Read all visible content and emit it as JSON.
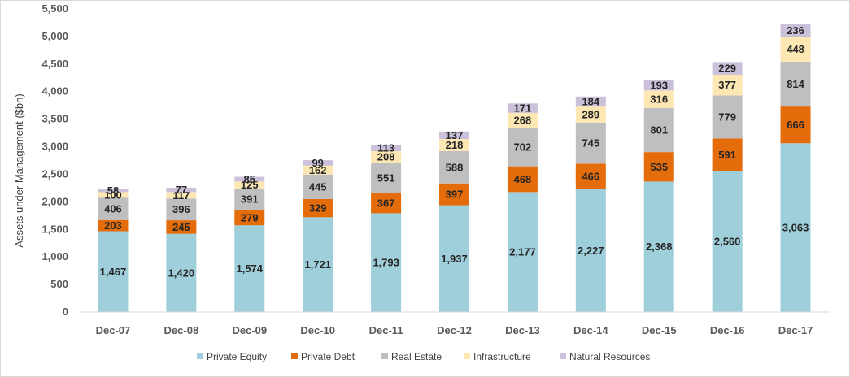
{
  "chart_data": {
    "type": "bar",
    "stacked": true,
    "ylabel": "Assets under Management ($bn)",
    "xlabel": "",
    "ylim": [
      0,
      5500
    ],
    "yticks": [
      0,
      500,
      1000,
      1500,
      2000,
      2500,
      3000,
      3500,
      4000,
      4500,
      5000,
      5500
    ],
    "ytick_labels": [
      "0",
      "500",
      "1,000",
      "1,500",
      "2,000",
      "2,500",
      "3,000",
      "3,500",
      "4,000",
      "4,500",
      "5,000",
      "5,500"
    ],
    "grid": false,
    "legend_position": "bottom",
    "categories": [
      "Dec-07",
      "Dec-08",
      "Dec-09",
      "Dec-10",
      "Dec-11",
      "Dec-12",
      "Dec-13",
      "Dec-14",
      "Dec-15",
      "Dec-16",
      "Dec-17"
    ],
    "series": [
      {
        "name": "Private Equity",
        "color": "#9ecfdb",
        "values": [
          1467,
          1420,
          1574,
          1721,
          1793,
          1937,
          2177,
          2227,
          2368,
          2560,
          3063
        ],
        "labels": [
          "1,467",
          "1,420",
          "1,574",
          "1,721",
          "1,793",
          "1,937",
          "2,177",
          "2,227",
          "2,368",
          "2,560",
          "3,063"
        ]
      },
      {
        "name": "Private Debt",
        "color": "#e46c0a",
        "values": [
          203,
          245,
          279,
          329,
          367,
          397,
          468,
          466,
          535,
          591,
          666
        ],
        "labels": [
          "203",
          "245",
          "279",
          "329",
          "367",
          "397",
          "468",
          "466",
          "535",
          "591",
          "666"
        ]
      },
      {
        "name": "Real Estate",
        "color": "#bfbfbf",
        "values": [
          406,
          396,
          391,
          445,
          551,
          588,
          702,
          745,
          801,
          779,
          814
        ],
        "labels": [
          "406",
          "396",
          "391",
          "445",
          "551",
          "588",
          "702",
          "745",
          "801",
          "779",
          "814"
        ]
      },
      {
        "name": "Infrastructure",
        "color": "#fde8b4",
        "values": [
          100,
          117,
          125,
          162,
          208,
          218,
          268,
          289,
          316,
          377,
          448
        ],
        "labels": [
          "100",
          "117",
          "125",
          "162",
          "208",
          "218",
          "268",
          "289",
          "316",
          "377",
          "448"
        ]
      },
      {
        "name": "Natural Resources",
        "color": "#ccc1da",
        "values": [
          58,
          77,
          85,
          99,
          113,
          137,
          171,
          184,
          193,
          229,
          236
        ],
        "labels": [
          "58",
          "77",
          "85",
          "99",
          "113",
          "137",
          "171",
          "184",
          "193",
          "229",
          "236"
        ]
      }
    ]
  }
}
